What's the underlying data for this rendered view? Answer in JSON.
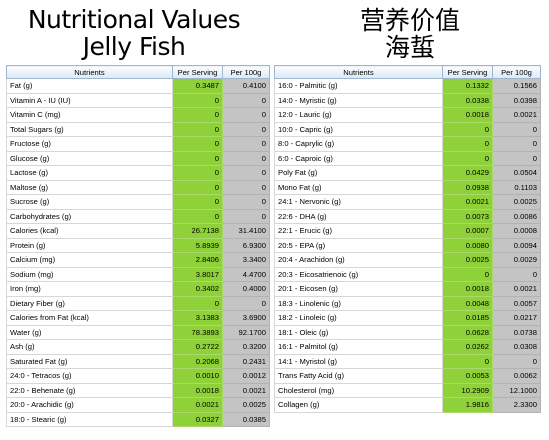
{
  "title_left": [
    "Nutritional Values",
    "Jelly Fish"
  ],
  "title_right": [
    "营养价值",
    "海蜇"
  ],
  "headers": {
    "nutrients": "Nutrients",
    "per_serving": "Per Serving",
    "per_100g": "Per 100g"
  },
  "left_rows": [
    {
      "name": "Fat (g)",
      "serving": "0.3487",
      "per100": "0.4100"
    },
    {
      "name": "Vitamin A - IU (IU)",
      "serving": "0",
      "per100": "0"
    },
    {
      "name": "Vitamin C (mg)",
      "serving": "0",
      "per100": "0"
    },
    {
      "name": "Total Sugars (g)",
      "serving": "0",
      "per100": "0"
    },
    {
      "name": "Fructose (g)",
      "serving": "0",
      "per100": "0"
    },
    {
      "name": "Glucose (g)",
      "serving": "0",
      "per100": "0"
    },
    {
      "name": "Lactose (g)",
      "serving": "0",
      "per100": "0"
    },
    {
      "name": "Maltose (g)",
      "serving": "0",
      "per100": "0"
    },
    {
      "name": "Sucrose (g)",
      "serving": "0",
      "per100": "0"
    },
    {
      "name": "Carbohydrates (g)",
      "serving": "0",
      "per100": "0"
    },
    {
      "name": "Calories (kcal)",
      "serving": "26.7138",
      "per100": "31.4100"
    },
    {
      "name": "Protein (g)",
      "serving": "5.8939",
      "per100": "6.9300"
    },
    {
      "name": "Calcium (mg)",
      "serving": "2.8406",
      "per100": "3.3400"
    },
    {
      "name": "Sodium (mg)",
      "serving": "3.8017",
      "per100": "4.4700"
    },
    {
      "name": "Iron (mg)",
      "serving": "0.3402",
      "per100": "0.4000"
    },
    {
      "name": "Dietary Fiber (g)",
      "serving": "0",
      "per100": "0"
    },
    {
      "name": "Calories from Fat (kcal)",
      "serving": "3.1383",
      "per100": "3.6900"
    },
    {
      "name": "Water (g)",
      "serving": "78.3893",
      "per100": "92.1700"
    },
    {
      "name": "Ash (g)",
      "serving": "0.2722",
      "per100": "0.3200"
    },
    {
      "name": "Saturated Fat (g)",
      "serving": "0.2068",
      "per100": "0.2431"
    },
    {
      "name": "24:0 - Tetracos (g)",
      "serving": "0.0010",
      "per100": "0.0012"
    },
    {
      "name": "22:0 - Behenate (g)",
      "serving": "0.0018",
      "per100": "0.0021"
    },
    {
      "name": "20:0 - Arachidic (g)",
      "serving": "0.0021",
      "per100": "0.0025"
    },
    {
      "name": "18:0 - Stearic (g)",
      "serving": "0.0327",
      "per100": "0.0385"
    }
  ],
  "right_rows": [
    {
      "name": "16:0 - Palmitic (g)",
      "serving": "0.1332",
      "per100": "0.1566"
    },
    {
      "name": "14:0 - Myristic (g)",
      "serving": "0.0338",
      "per100": "0.0398"
    },
    {
      "name": "12:0 - Lauric (g)",
      "serving": "0.0018",
      "per100": "0.0021"
    },
    {
      "name": "10:0 - Capric (g)",
      "serving": "0",
      "per100": "0"
    },
    {
      "name": "8:0 - Caprylic (g)",
      "serving": "0",
      "per100": "0"
    },
    {
      "name": "6:0 - Caproic (g)",
      "serving": "0",
      "per100": "0"
    },
    {
      "name": "Poly Fat (g)",
      "serving": "0.0429",
      "per100": "0.0504"
    },
    {
      "name": "Mono Fat (g)",
      "serving": "0.0938",
      "per100": "0.1103"
    },
    {
      "name": "24:1 - Nervonic (g)",
      "serving": "0.0021",
      "per100": "0.0025"
    },
    {
      "name": "22:6 - DHA (g)",
      "serving": "0.0073",
      "per100": "0.0086"
    },
    {
      "name": "22:1 - Erucic (g)",
      "serving": "0.0007",
      "per100": "0.0008"
    },
    {
      "name": "20:5 - EPA (g)",
      "serving": "0.0080",
      "per100": "0.0094"
    },
    {
      "name": "20:4 - Arachidon (g)",
      "serving": "0.0025",
      "per100": "0.0029"
    },
    {
      "name": "20:3 - Eicosatrienoic (g)",
      "serving": "0",
      "per100": "0"
    },
    {
      "name": "20:1 - Eicosen (g)",
      "serving": "0.0018",
      "per100": "0.0021"
    },
    {
      "name": "18:3 - Linolenic (g)",
      "serving": "0.0048",
      "per100": "0.0057"
    },
    {
      "name": "18:2 - Linoleic (g)",
      "serving": "0.0185",
      "per100": "0.0217"
    },
    {
      "name": "18:1 - Oleic (g)",
      "serving": "0.0628",
      "per100": "0.0738"
    },
    {
      "name": "16:1 - Palmitol (g)",
      "serving": "0.0262",
      "per100": "0.0308"
    },
    {
      "name": "14:1 - Myristol (g)",
      "serving": "0",
      "per100": "0"
    },
    {
      "name": "Trans Fatty Acid (g)",
      "serving": "0.0053",
      "per100": "0.0062"
    },
    {
      "name": "Cholesterol (mg)",
      "serving": "10.2909",
      "per100": "12.1000"
    },
    {
      "name": "Collagen (g)",
      "serving": "1.9816",
      "per100": "2.3300"
    }
  ]
}
